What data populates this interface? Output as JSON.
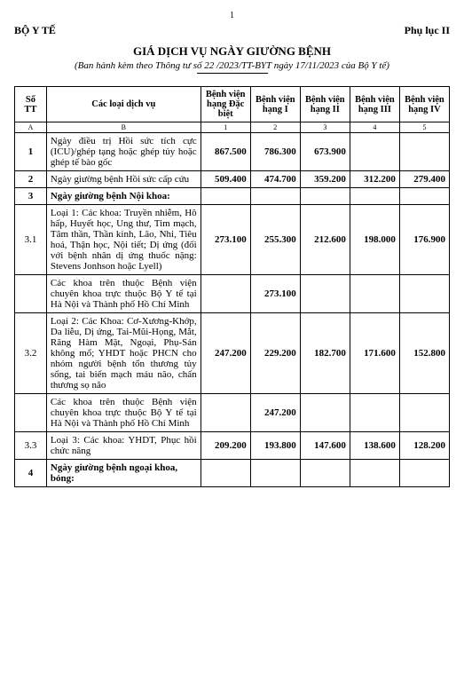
{
  "page_number": "1",
  "header_left": "BỘ Y TẾ",
  "header_right": "Phụ lục II",
  "title": "GIÁ DỊCH VỤ NGÀY GIƯỜNG BỆNH",
  "subtitle_prefix": "(Ban hành kèm theo Thông tư số ",
  "subtitle_num": "22",
  "subtitle_mid": " /2023/TT-BYT ngày ",
  "subtitle_date": "17/11/2023",
  "subtitle_suffix": " của Bộ Y tế)",
  "columns": {
    "stt": "Số TT",
    "service": "Các loại dịch vụ",
    "h_db": "Bệnh viện hạng Đặc biệt",
    "h_1": "Bệnh viện hạng I",
    "h_2": "Bệnh viện hạng II",
    "h_3": "Bệnh viện hạng III",
    "h_4": "Bệnh viện hạng IV"
  },
  "labels": {
    "a": "A",
    "b": "B",
    "c1": "1",
    "c2": "2",
    "c3": "3",
    "c4": "4",
    "c5": "5"
  },
  "rows": [
    {
      "stt": "1",
      "bold_stt": true,
      "desc": "Ngày điều trị Hồi sức tích cực (ICU)/ghép tạng hoặc ghép tủy hoặc ghép tế bào gốc",
      "vals": [
        "867.500",
        "786.300",
        "673.900",
        "",
        ""
      ]
    },
    {
      "stt": "2",
      "bold_stt": true,
      "desc": "Ngày giường bệnh Hồi sức cấp cứu",
      "vals": [
        "509.400",
        "474.700",
        "359.200",
        "312.200",
        "279.400"
      ]
    },
    {
      "stt": "3",
      "bold_stt": true,
      "desc_bold": "Ngày giường bệnh Nội khoa:",
      "vals": [
        "",
        "",
        "",
        "",
        ""
      ]
    },
    {
      "stt": "3.1",
      "desc": "Loại 1: Các khoa: Truyền nhiễm, Hô hấp, Huyết học, Ung thư, Tim mạch, Tâm thần, Thần kinh, Lão, Nhi, Tiêu hoá, Thận học, Nội tiết; Dị ứng (đối với bệnh nhân dị ứng thuốc nặng: Stevens Jonhson hoặc Lyell)",
      "vals": [
        "273.100",
        "255.300",
        "212.600",
        "198.000",
        "176.900"
      ]
    },
    {
      "stt": "",
      "desc": "Các khoa trên thuộc Bệnh viện chuyên khoa trực thuộc Bộ Y tế tại Hà Nội và Thành phố Hồ Chí Minh",
      "vals": [
        "",
        "273.100",
        "",
        "",
        ""
      ]
    },
    {
      "stt": "3.2",
      "desc": "Loại 2: Các Khoa: Cơ-Xương-Khớp, Da liễu, Dị ứng, Tai-Mũi-Họng, Mắt, Răng Hàm Mặt, Ngoại, Phụ-Sản không mổ; YHDT hoặc PHCN cho nhóm người bệnh tổn thương tủy sống, tai biến mạch máu não, chấn thương sọ não",
      "vals": [
        "247.200",
        "229.200",
        "182.700",
        "171.600",
        "152.800"
      ]
    },
    {
      "stt": "",
      "desc": "Các khoa trên thuộc Bệnh viện chuyên khoa trực thuộc Bộ Y tế tại Hà Nội và Thành phố Hồ Chí Minh",
      "vals": [
        "",
        "247.200",
        "",
        "",
        ""
      ]
    },
    {
      "stt": "3.3",
      "desc": "Loại 3: Các khoa: YHDT, Phục hồi chức năng",
      "vals": [
        "209.200",
        "193.800",
        "147.600",
        "138.600",
        "128.200"
      ]
    },
    {
      "stt": "4",
      "bold_stt": true,
      "desc_bold": "Ngày giường bệnh ngoại khoa, bỏng:",
      "vals": [
        "",
        "",
        "",
        "",
        ""
      ]
    }
  ]
}
